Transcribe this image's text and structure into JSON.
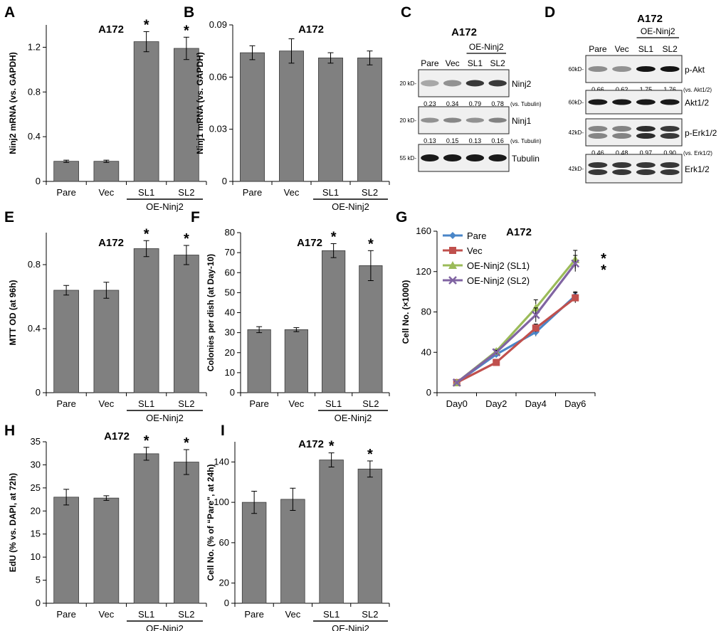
{
  "figure": {
    "colors": {
      "bar": "#808080",
      "bar_edge": "#3a3a3a",
      "axis": "#000000"
    }
  },
  "chart_data": [
    {
      "panel": "A",
      "type": "bar",
      "title": "A172",
      "ylabel": "Ninj2 mRNA (vs. GAPDH)",
      "categories": [
        "Pare",
        "Vec",
        "SL1",
        "SL2"
      ],
      "values": [
        0.18,
        0.18,
        1.25,
        1.19
      ],
      "errors": [
        0.01,
        0.01,
        0.09,
        0.1
      ],
      "significance": [
        "",
        "",
        "*",
        "*"
      ],
      "ylim": [
        0,
        1.4
      ],
      "yticks": [
        "0",
        "0.4",
        "0.8",
        "1.2"
      ],
      "group_label": "OE-Ninj2"
    },
    {
      "panel": "B",
      "type": "bar",
      "title": "A172",
      "ylabel": "Ninj1 mRNA (vs. GAPDH)",
      "categories": [
        "Pare",
        "Vec",
        "SL1",
        "SL2"
      ],
      "values": [
        0.074,
        0.075,
        0.071,
        0.071
      ],
      "errors": [
        0.004,
        0.007,
        0.003,
        0.004
      ],
      "significance": [
        "",
        "",
        "",
        ""
      ],
      "ylim": [
        0,
        0.09
      ],
      "yticks": [
        "0",
        "0.03",
        "0.06",
        "0.09"
      ],
      "group_label": "OE-Ninj2"
    },
    {
      "panel": "E",
      "type": "bar",
      "title": "A172",
      "ylabel": "MTT OD (at 96h)",
      "categories": [
        "Pare",
        "Vec",
        "SL1",
        "SL2"
      ],
      "values": [
        0.64,
        0.64,
        0.9,
        0.86
      ],
      "errors": [
        0.03,
        0.05,
        0.05,
        0.06
      ],
      "significance": [
        "",
        "",
        "*",
        "*"
      ],
      "ylim": [
        0,
        1.0
      ],
      "yticks": [
        "0",
        "0.4",
        "0.8"
      ],
      "group_label": "OE-Ninj2"
    },
    {
      "panel": "F",
      "type": "bar",
      "title": "A172",
      "ylabel": "Colonies per dish (at Day-10)",
      "categories": [
        "Pare",
        "Vec",
        "SL1",
        "SL2"
      ],
      "values": [
        31.5,
        31.5,
        71,
        63.5
      ],
      "errors": [
        1.5,
        1.0,
        3.5,
        7.5
      ],
      "significance": [
        "",
        "",
        "*",
        "*"
      ],
      "ylim": [
        0,
        80
      ],
      "yticks": [
        "0",
        "10",
        "20",
        "30",
        "40",
        "50",
        "60",
        "70",
        "80"
      ],
      "group_label": "OE-Ninj2"
    },
    {
      "panel": "G",
      "type": "line",
      "title": "A172",
      "ylabel": "Cell No. (×1000)",
      "x": [
        "Day0",
        "Day2",
        "Day4",
        "Day6"
      ],
      "ylim": [
        0,
        160
      ],
      "yticks": [
        "0",
        "40",
        "80",
        "120",
        "160"
      ],
      "series": [
        {
          "name": "Pare",
          "color": "#4a86c8",
          "marker": "diamond",
          "values": [
            10,
            38,
            60,
            96
          ],
          "errors": [
            1,
            3,
            4,
            4
          ]
        },
        {
          "name": "Vec",
          "color": "#c0504d",
          "marker": "square",
          "values": [
            10,
            30,
            64,
            94
          ],
          "errors": [
            1,
            2,
            4,
            5
          ]
        },
        {
          "name": "OE-Ninj2 (SL1)",
          "color": "#9bbb59",
          "marker": "triangle",
          "values": [
            10,
            41,
            84,
            132
          ],
          "errors": [
            1,
            2,
            8,
            9
          ]
        },
        {
          "name": "OE-Ninj2 (SL2)",
          "color": "#8064a2",
          "marker": "x",
          "values": [
            10,
            40,
            77,
            128
          ],
          "errors": [
            1,
            2,
            7,
            8
          ]
        }
      ],
      "significance": [
        "*",
        "*"
      ],
      "legend_position": "top-left"
    },
    {
      "panel": "H",
      "type": "bar",
      "title": "A172",
      "ylabel": "EdU (% vs. DAPI, at 72h)",
      "categories": [
        "Pare",
        "Vec",
        "SL1",
        "SL2"
      ],
      "values": [
        23,
        22.8,
        32.4,
        30.6
      ],
      "errors": [
        1.7,
        0.5,
        1.4,
        2.7
      ],
      "significance": [
        "",
        "",
        "*",
        "*"
      ],
      "ylim": [
        0,
        35
      ],
      "yticks": [
        "0",
        "5",
        "10",
        "15",
        "20",
        "25",
        "30",
        "35"
      ],
      "group_label": "OE-Ninj2"
    },
    {
      "panel": "I",
      "type": "bar",
      "title": "A172",
      "ylabel": "Cell No. (% of “Pare”, at 24h)",
      "categories": [
        "Pare",
        "Vec",
        "SL1",
        "SL2"
      ],
      "values": [
        100,
        103,
        142,
        133
      ],
      "errors": [
        11,
        11,
        7,
        8
      ],
      "significance": [
        "",
        "",
        "*",
        "*"
      ],
      "ylim": [
        0,
        160
      ],
      "yticks": [
        "0",
        "20",
        "60",
        "100",
        "140"
      ],
      "group_label": "OE-Ninj2"
    }
  ],
  "blots": {
    "C": {
      "panel": "C",
      "title": "A172",
      "group_label": "OE-Ninj2",
      "lanes": [
        "Pare",
        "Vec",
        "SL1",
        "SL2"
      ],
      "rows": [
        {
          "marker": "20 kD-",
          "protein": "Ninj2",
          "intensity": [
            0.23,
            0.34,
            0.79,
            0.78
          ],
          "quant": [
            "0.23",
            "0.34",
            "0.79",
            "0.78"
          ],
          "quant_ref": "(vs. Tubulin)"
        },
        {
          "marker": "20 kD-",
          "protein": "Ninj1",
          "intensity": [
            0.13,
            0.15,
            0.13,
            0.16
          ],
          "quant": [
            "0.13",
            "0.15",
            "0.13",
            "0.16"
          ],
          "quant_ref": "(vs. Tubulin)"
        },
        {
          "marker": "55 kD-",
          "protein": "Tubulin",
          "intensity": [
            1,
            1,
            1,
            1
          ],
          "quant": [],
          "quant_ref": ""
        }
      ]
    },
    "D": {
      "panel": "D",
      "title": "A172",
      "group_label": "OE-Ninj2",
      "lanes": [
        "Pare",
        "Vec",
        "SL1",
        "SL2"
      ],
      "rows": [
        {
          "marker": "60kD-",
          "protein": "p-Akt",
          "intensity": [
            0.66,
            0.62,
            1.75,
            1.76
          ],
          "quant": [
            "0.66",
            "0.62",
            "1.75",
            "1.76"
          ],
          "quant_ref": "(vs. Akt1/2)"
        },
        {
          "marker": "60kD-",
          "protein": "Akt1/2",
          "intensity": [
            1,
            1,
            1,
            1
          ],
          "quant": [],
          "quant_ref": ""
        },
        {
          "marker": "42kD-",
          "protein": "p-Erk1/2",
          "intensity": [
            0.46,
            0.48,
            0.97,
            0.9
          ],
          "quant": [
            "0.46",
            "0.48",
            "0.97",
            "0.90"
          ],
          "quant_ref": "(vs. Erk1/2)"
        },
        {
          "marker": "42kD-",
          "protein": "Erk1/2",
          "intensity": [
            1,
            1,
            1,
            1
          ],
          "quant": [],
          "quant_ref": ""
        }
      ]
    }
  }
}
